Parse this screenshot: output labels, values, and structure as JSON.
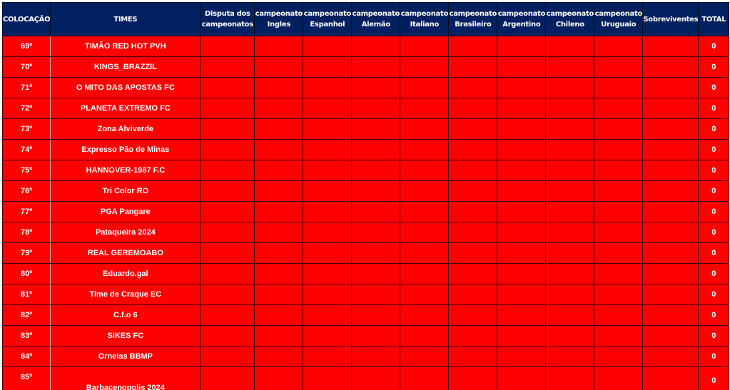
{
  "headers": [
    "COLOCAÇÃO",
    "TIMES",
    "Disputa dos campeonatos",
    "campeonato Ingles",
    "campeonato Espanhol",
    "campeonato Alemão",
    "campeonato Italiano",
    "campeonato Brasileiro",
    "campeonato Argentino",
    "campeonato Chileno",
    "campeonato Uruguaio",
    "Sobreviventes",
    "TOTAL"
  ],
  "rows": [
    {
      "pos": "69º",
      "team": "TIMÃO RED HOT PVH",
      "total": "0"
    },
    {
      "pos": "70º",
      "team": "KINGS_BRAZZIL",
      "total": "0"
    },
    {
      "pos": "71º",
      "team": "O MITO DAS APOSTAS FC",
      "total": "0"
    },
    {
      "pos": "72º",
      "team": "PLANETA EXTREMO FC",
      "total": "0"
    },
    {
      "pos": "73º",
      "team": "Zona Alviverde",
      "total": "0"
    },
    {
      "pos": "74º",
      "team": "Expresso Pão de Minas",
      "total": "0"
    },
    {
      "pos": "75º",
      "team": "HANNOVER-1987 F.C",
      "total": "0"
    },
    {
      "pos": "76º",
      "team": "Tri Color RO",
      "total": "0"
    },
    {
      "pos": "77º",
      "team": "PGA Pangare",
      "total": "0"
    },
    {
      "pos": "78º",
      "team": "Pataqueira 2024",
      "total": "0"
    },
    {
      "pos": "79º",
      "team": "REAL GEREMOABO",
      "total": "0"
    },
    {
      "pos": "80º",
      "team": "Eduardo.gal",
      "total": "0"
    },
    {
      "pos": "81º",
      "team": "Time de Craque EC",
      "total": "0"
    },
    {
      "pos": "82º",
      "team": "C.f.o 6",
      "total": "0"
    },
    {
      "pos": "83º",
      "team": "SIKES FC",
      "total": "0"
    },
    {
      "pos": "84º",
      "team": "Ornelas BBMP",
      "total": "0"
    },
    {
      "pos": "85º",
      "team": "Barbacenopolis 2024",
      "total": "0"
    }
  ],
  "colors": {
    "header_bg": "#002060",
    "row_bg": "#ff0000",
    "text": "#ffffff"
  }
}
